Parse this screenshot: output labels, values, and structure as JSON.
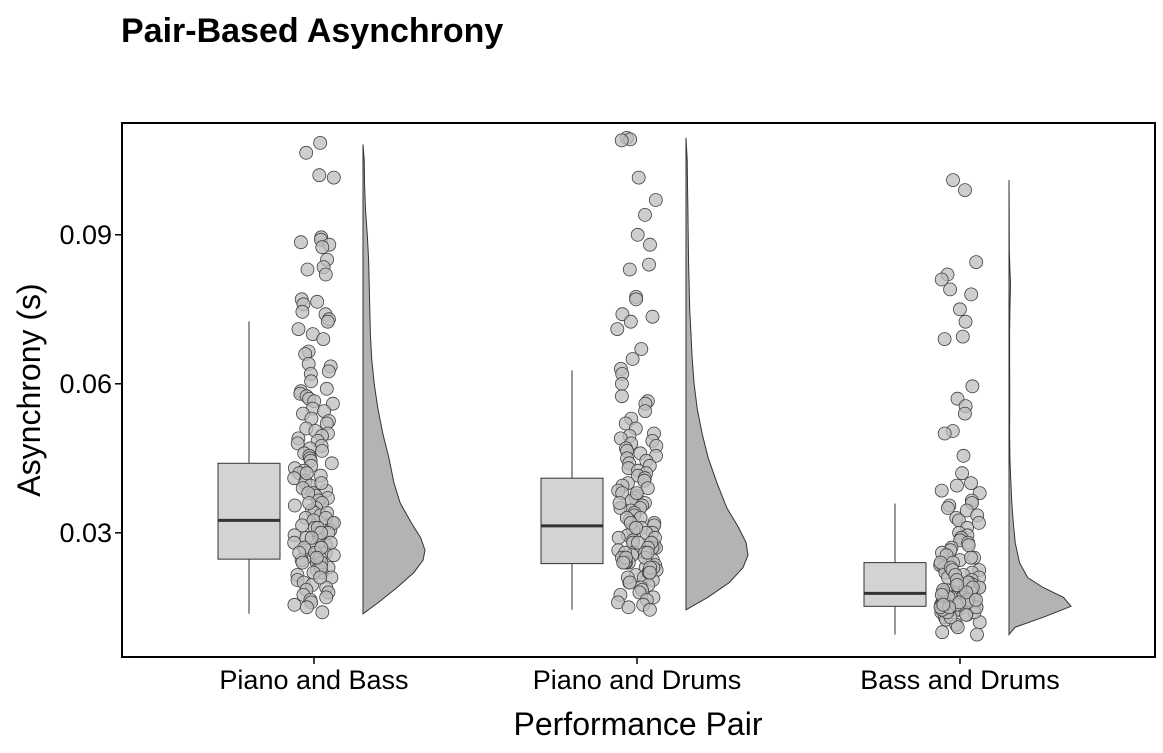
{
  "chart_data": {
    "type": "raincloud",
    "title": "Pair-Based Asynchrony",
    "xlabel": "Performance Pair",
    "ylabel": "Asynchrony (s)",
    "ylim": [
      0.005,
      0.1125
    ],
    "yticks": [
      0.03,
      0.06,
      0.09
    ],
    "ytick_labels": [
      "0.03",
      "0.06",
      "0.09"
    ],
    "grid": false,
    "legend": "none",
    "categories": [
      "Piano and Bass",
      "Piano and Drums",
      "Bass and Drums"
    ],
    "colors": {
      "box_fill": "#d3d3d3",
      "point_fill": "#bdbdbd",
      "point_stroke": "#404040",
      "density_fill": "#b3b3b3",
      "median": "#333333"
    },
    "boxplots": [
      {
        "category": "Piano and Bass",
        "whisker_low": 0.0137,
        "q1": 0.0247,
        "median": 0.0325,
        "q3": 0.044,
        "whisker_high": 0.0726
      },
      {
        "category": "Piano and Drums",
        "whisker_low": 0.0145,
        "q1": 0.0238,
        "median": 0.0314,
        "q3": 0.041,
        "whisker_high": 0.0627
      },
      {
        "category": "Bass and Drums",
        "whisker_low": 0.0095,
        "q1": 0.0152,
        "median": 0.0178,
        "q3": 0.024,
        "whisker_high": 0.0359
      }
    ],
    "densities": [
      {
        "category": "Piano and Bass",
        "min": 0.0137,
        "max": 0.1082,
        "mode": 0.0265,
        "profile": [
          [
            0.0137,
            0.0
          ],
          [
            0.016,
            0.25
          ],
          [
            0.019,
            0.55
          ],
          [
            0.022,
            0.82
          ],
          [
            0.0245,
            0.97
          ],
          [
            0.0265,
            1.0
          ],
          [
            0.029,
            0.93
          ],
          [
            0.032,
            0.78
          ],
          [
            0.036,
            0.6
          ],
          [
            0.04,
            0.5
          ],
          [
            0.045,
            0.42
          ],
          [
            0.05,
            0.32
          ],
          [
            0.055,
            0.24
          ],
          [
            0.06,
            0.18
          ],
          [
            0.065,
            0.14
          ],
          [
            0.07,
            0.12
          ],
          [
            0.075,
            0.11
          ],
          [
            0.08,
            0.1
          ],
          [
            0.085,
            0.09
          ],
          [
            0.09,
            0.07
          ],
          [
            0.095,
            0.04
          ],
          [
            0.1,
            0.025
          ],
          [
            0.105,
            0.02
          ],
          [
            0.1082,
            0.0
          ]
        ]
      },
      {
        "category": "Piano and Drums",
        "min": 0.0145,
        "max": 0.1095,
        "mode": 0.0255,
        "profile": [
          [
            0.0145,
            0.0
          ],
          [
            0.017,
            0.35
          ],
          [
            0.02,
            0.7
          ],
          [
            0.023,
            0.92
          ],
          [
            0.0255,
            1.0
          ],
          [
            0.028,
            0.97
          ],
          [
            0.031,
            0.85
          ],
          [
            0.035,
            0.66
          ],
          [
            0.04,
            0.5
          ],
          [
            0.045,
            0.36
          ],
          [
            0.05,
            0.26
          ],
          [
            0.055,
            0.18
          ],
          [
            0.06,
            0.13
          ],
          [
            0.065,
            0.1
          ],
          [
            0.07,
            0.08
          ],
          [
            0.075,
            0.06
          ],
          [
            0.08,
            0.05
          ],
          [
            0.085,
            0.04
          ],
          [
            0.09,
            0.035
          ],
          [
            0.095,
            0.03
          ],
          [
            0.1,
            0.025
          ],
          [
            0.105,
            0.02
          ],
          [
            0.1095,
            0.0
          ]
        ]
      },
      {
        "category": "Bass and Drums",
        "min": 0.0095,
        "max": 0.101,
        "mode": 0.0152,
        "profile": [
          [
            0.0095,
            0.0
          ],
          [
            0.011,
            0.1
          ],
          [
            0.013,
            0.55
          ],
          [
            0.0152,
            1.0
          ],
          [
            0.017,
            0.88
          ],
          [
            0.019,
            0.55
          ],
          [
            0.021,
            0.3
          ],
          [
            0.024,
            0.17
          ],
          [
            0.028,
            0.1
          ],
          [
            0.032,
            0.07
          ],
          [
            0.036,
            0.045
          ],
          [
            0.04,
            0.03
          ],
          [
            0.045,
            0.015
          ],
          [
            0.05,
            0.01
          ],
          [
            0.055,
            0.012
          ],
          [
            0.06,
            0.012
          ],
          [
            0.065,
            0.01
          ],
          [
            0.07,
            0.01
          ],
          [
            0.075,
            0.015
          ],
          [
            0.08,
            0.025
          ],
          [
            0.083,
            0.015
          ],
          [
            0.087,
            0.005
          ],
          [
            0.095,
            0.004
          ],
          [
            0.101,
            0.0
          ]
        ]
      }
    ],
    "points": [
      {
        "category": "Piano and Bass",
        "values": [
          0.1085,
          0.1065,
          0.102,
          0.1015,
          0.0895,
          0.089,
          0.0885,
          0.088,
          0.0875,
          0.085,
          0.0835,
          0.083,
          0.082,
          0.077,
          0.0765,
          0.076,
          0.0745,
          0.074,
          0.073,
          0.0725,
          0.071,
          0.07,
          0.069,
          0.0665,
          0.066,
          0.064,
          0.0635,
          0.0625,
          0.062,
          0.0605,
          0.059,
          0.0585,
          0.058,
          0.0575,
          0.057,
          0.0565,
          0.056,
          0.055,
          0.0545,
          0.054,
          0.053,
          0.0525,
          0.052,
          0.051,
          0.0505,
          0.05,
          0.0495,
          0.049,
          0.0485,
          0.048,
          0.0475,
          0.047,
          0.0465,
          0.046,
          0.0455,
          0.045,
          0.0445,
          0.044,
          0.0435,
          0.043,
          0.0425,
          0.042,
          0.0415,
          0.041,
          0.0405,
          0.04,
          0.0395,
          0.039,
          0.0385,
          0.038,
          0.0375,
          0.037,
          0.0365,
          0.036,
          0.0355,
          0.035,
          0.0345,
          0.034,
          0.0335,
          0.033,
          0.0325,
          0.032,
          0.0315,
          0.031,
          0.0305,
          0.03,
          0.0295,
          0.029,
          0.0285,
          0.028,
          0.0275,
          0.027,
          0.0265,
          0.026,
          0.0255,
          0.025,
          0.0245,
          0.024,
          0.0235,
          0.023,
          0.0225,
          0.022,
          0.0215,
          0.021,
          0.0205,
          0.02,
          0.0195,
          0.019,
          0.0185,
          0.018,
          0.0175,
          0.017,
          0.0165,
          0.016,
          0.0155,
          0.015,
          0.014,
          0.034,
          0.033,
          0.032,
          0.031,
          0.03,
          0.029,
          0.028,
          0.027,
          0.026,
          0.025,
          0.024,
          0.023,
          0.022,
          0.021,
          0.028,
          0.027,
          0.026,
          0.025,
          0.024,
          0.03,
          0.029,
          0.042,
          0.04,
          0.038,
          0.036
        ]
      },
      {
        "category": "Piano and Drums",
        "values": [
          0.1095,
          0.1092,
          0.109,
          0.1015,
          0.097,
          0.094,
          0.09,
          0.088,
          0.084,
          0.083,
          0.0775,
          0.077,
          0.074,
          0.0735,
          0.0725,
          0.071,
          0.067,
          0.065,
          0.063,
          0.062,
          0.06,
          0.0575,
          0.0565,
          0.056,
          0.0545,
          0.053,
          0.052,
          0.051,
          0.05,
          0.0495,
          0.049,
          0.0485,
          0.048,
          0.0475,
          0.047,
          0.0465,
          0.046,
          0.0455,
          0.045,
          0.0445,
          0.044,
          0.0435,
          0.043,
          0.0425,
          0.042,
          0.0415,
          0.041,
          0.0405,
          0.04,
          0.0395,
          0.039,
          0.0385,
          0.038,
          0.0375,
          0.037,
          0.0365,
          0.036,
          0.0355,
          0.035,
          0.0345,
          0.034,
          0.0335,
          0.033,
          0.0325,
          0.032,
          0.0315,
          0.031,
          0.0305,
          0.03,
          0.0295,
          0.029,
          0.0285,
          0.028,
          0.0275,
          0.027,
          0.0265,
          0.026,
          0.0255,
          0.025,
          0.0245,
          0.024,
          0.0235,
          0.023,
          0.0225,
          0.022,
          0.0215,
          0.021,
          0.0205,
          0.02,
          0.0195,
          0.019,
          0.0185,
          0.018,
          0.0175,
          0.017,
          0.0165,
          0.016,
          0.0155,
          0.015,
          0.0145,
          0.03,
          0.029,
          0.028,
          0.027,
          0.026,
          0.025,
          0.024,
          0.023,
          0.022,
          0.021,
          0.02,
          0.028,
          0.027,
          0.026,
          0.025,
          0.024,
          0.023,
          0.022,
          0.026,
          0.025,
          0.024,
          0.035,
          0.033,
          0.032,
          0.031,
          0.038,
          0.036
        ]
      },
      {
        "category": "Bass and Drums",
        "values": [
          0.101,
          0.099,
          0.0845,
          0.082,
          0.081,
          0.079,
          0.078,
          0.075,
          0.0725,
          0.0695,
          0.069,
          0.0595,
          0.057,
          0.0555,
          0.054,
          0.0505,
          0.05,
          0.0455,
          0.042,
          0.04,
          0.0395,
          0.0385,
          0.038,
          0.0365,
          0.036,
          0.0355,
          0.035,
          0.0345,
          0.0335,
          0.033,
          0.0325,
          0.032,
          0.031,
          0.03,
          0.0295,
          0.029,
          0.0285,
          0.028,
          0.0275,
          0.027,
          0.0265,
          0.026,
          0.0255,
          0.025,
          0.0245,
          0.024,
          0.0235,
          0.023,
          0.0225,
          0.022,
          0.0215,
          0.021,
          0.0205,
          0.02,
          0.0195,
          0.019,
          0.0185,
          0.018,
          0.0175,
          0.017,
          0.0165,
          0.016,
          0.0155,
          0.015,
          0.0145,
          0.014,
          0.0135,
          0.013,
          0.0125,
          0.012,
          0.0115,
          0.011,
          0.01,
          0.0095,
          0.02,
          0.0195,
          0.019,
          0.0185,
          0.018,
          0.0175,
          0.017,
          0.0165,
          0.016,
          0.0155,
          0.015,
          0.0145,
          0.014,
          0.0135,
          0.013,
          0.0185,
          0.018,
          0.0175,
          0.017,
          0.0165,
          0.016,
          0.0155,
          0.015,
          0.0145,
          0.014,
          0.0175,
          0.017,
          0.0165,
          0.016,
          0.0155,
          0.015,
          0.0145,
          0.0165,
          0.016,
          0.0155,
          0.015,
          0.022,
          0.021,
          0.02,
          0.019,
          0.018,
          0.017,
          0.016,
          0.015,
          0.025,
          0.024,
          0.023,
          0.0225,
          0.0215,
          0.0205,
          0.0195,
          0.0185,
          0.0175,
          0.0165,
          0.0155
        ]
      }
    ]
  }
}
